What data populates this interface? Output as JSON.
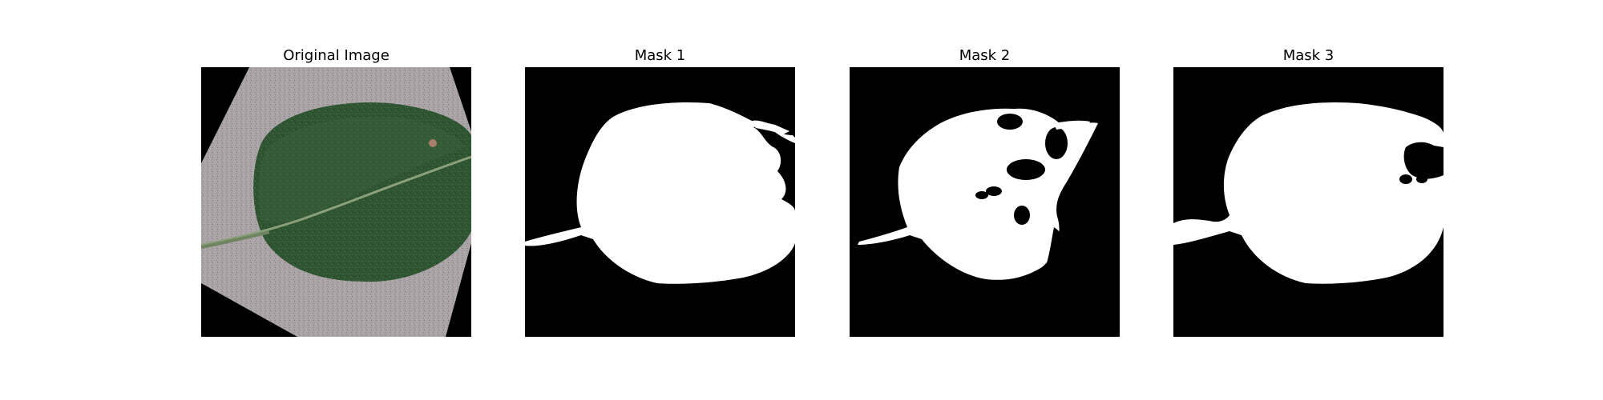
{
  "figure": {
    "panels": [
      {
        "title": "Original Image",
        "type": "photo",
        "subject": "leaf"
      },
      {
        "title": "Mask 1",
        "type": "binary-mask"
      },
      {
        "title": "Mask 2",
        "type": "binary-mask"
      },
      {
        "title": "Mask 3",
        "type": "binary-mask"
      }
    ]
  },
  "colors": {
    "background": "#ffffff",
    "mask_foreground": "#ffffff",
    "mask_background": "#000000",
    "leaf": "#2f5a2f",
    "leaf_dark": "#24442a",
    "paper": "#a9a1a4"
  }
}
